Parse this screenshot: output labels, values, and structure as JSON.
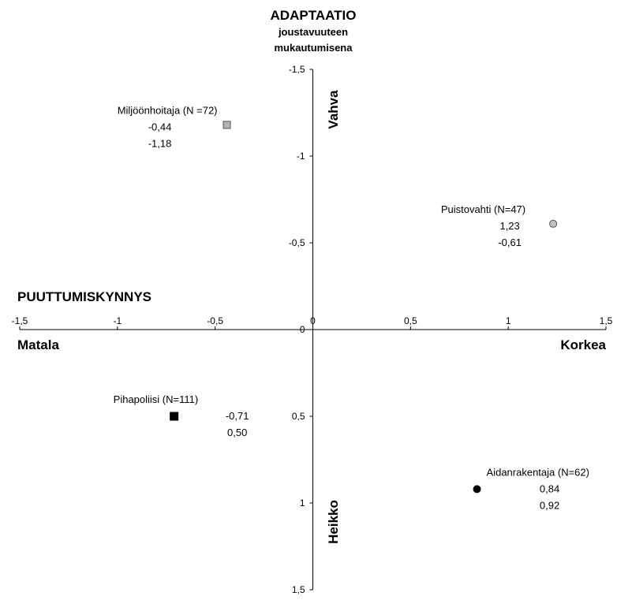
{
  "chart_data": {
    "type": "scatter",
    "title": "ADAPTAATIO",
    "subtitle": [
      "joustavuuteen",
      "mukautumisena"
    ],
    "xlabel": "PUUTTUMISKYNNYS",
    "x_low_label": "Matala",
    "x_high_label": "Korkea",
    "y_top_label": "Vahva",
    "y_bottom_label": "Heikko",
    "xlim": [
      -1.5,
      1.5
    ],
    "ylim": [
      -1.5,
      1.5
    ],
    "y_reversed": true,
    "x_ticks": [
      "-1,5",
      "-1",
      "-0,5",
      "0",
      "0,5",
      "1",
      "1,5"
    ],
    "x_tick_values": [
      -1.5,
      -1,
      -0.5,
      0,
      0.5,
      1,
      1.5
    ],
    "y_ticks": [
      "-1,5",
      "-1",
      "-0,5",
      "0",
      "0,5",
      "1",
      "1,5"
    ],
    "y_tick_values": [
      -1.5,
      -1,
      -0.5,
      0,
      0.5,
      1,
      1.5
    ],
    "points": [
      {
        "name": "Miljöönhoitaja (N =72)",
        "x": -0.44,
        "y": -1.18,
        "x_text": "-0,44",
        "y_text": "-1,18",
        "marker": "square",
        "color": "#b4b4b4",
        "stroke": "#555555"
      },
      {
        "name": "Puistovahti (N=47)",
        "x": 1.23,
        "y": -0.61,
        "x_text": "1,23",
        "y_text": "-0,61",
        "marker": "circle",
        "color": "#c0c0c0",
        "stroke": "#555555"
      },
      {
        "name": "Pihapoliisi (N=111)",
        "x": -0.71,
        "y": 0.5,
        "x_text": "-0,71",
        "y_text": "0,50",
        "marker": "square",
        "color": "#000000",
        "stroke": "#000000"
      },
      {
        "name": "Aidanrakentaja (N=62)",
        "x": 0.84,
        "y": 0.92,
        "x_text": "0,84",
        "y_text": "0,92",
        "marker": "circle",
        "color": "#000000",
        "stroke": "#000000"
      }
    ]
  }
}
